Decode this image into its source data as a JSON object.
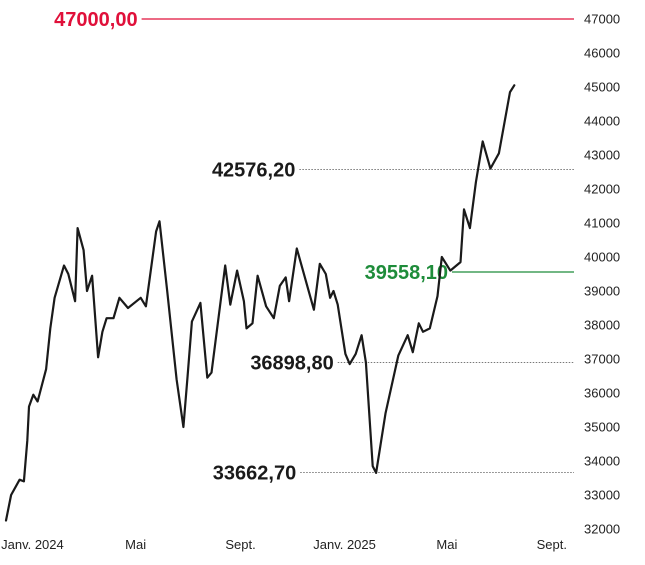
{
  "chart_data": {
    "type": "line",
    "title": "",
    "xlabel": "",
    "ylabel": "",
    "ylim": [
      32000,
      47000
    ],
    "xlim": [
      "2023-12-01",
      "2025-09-20"
    ],
    "grid": false,
    "y_ticks": [
      32000,
      33000,
      34000,
      35000,
      36000,
      37000,
      38000,
      39000,
      40000,
      41000,
      42000,
      43000,
      44000,
      45000,
      46000,
      47000
    ],
    "x_ticks": [
      {
        "date": "2024-01-01",
        "label": "Janv. 2024"
      },
      {
        "date": "2024-05-01",
        "label": "Mai"
      },
      {
        "date": "2024-09-01",
        "label": "Sept."
      },
      {
        "date": "2025-01-01",
        "label": "Janv. 2025"
      },
      {
        "date": "2025-05-01",
        "label": "Mai"
      },
      {
        "date": "2025-09-01",
        "label": "Sept."
      }
    ],
    "series": [
      {
        "color": "#1a1a1a",
        "points": [
          [
            "2023-12-01",
            32250
          ],
          [
            "2023-12-07",
            33000
          ],
          [
            "2023-12-17",
            33450
          ],
          [
            "2023-12-22",
            33400
          ],
          [
            "2023-12-26",
            34600
          ],
          [
            "2023-12-28",
            35600
          ],
          [
            "2024-01-02",
            35950
          ],
          [
            "2024-01-07",
            35750
          ],
          [
            "2024-01-17",
            36700
          ],
          [
            "2024-01-22",
            37900
          ],
          [
            "2024-01-27",
            38800
          ],
          [
            "2024-02-07",
            39750
          ],
          [
            "2024-02-12",
            39500
          ],
          [
            "2024-02-20",
            38700
          ],
          [
            "2024-02-23",
            40850
          ],
          [
            "2024-03-01",
            40200
          ],
          [
            "2024-03-05",
            39000
          ],
          [
            "2024-03-11",
            39450
          ],
          [
            "2024-03-18",
            37050
          ],
          [
            "2024-03-23",
            37800
          ],
          [
            "2024-03-28",
            38200
          ],
          [
            "2024-04-05",
            38200
          ],
          [
            "2024-04-12",
            38800
          ],
          [
            "2024-04-22",
            38500
          ],
          [
            "2024-05-07",
            38800
          ],
          [
            "2024-05-13",
            38550
          ],
          [
            "2024-05-25",
            40750
          ],
          [
            "2024-05-29",
            41050
          ],
          [
            "2024-06-07",
            39000
          ],
          [
            "2024-06-18",
            36400
          ],
          [
            "2024-06-26",
            35000
          ],
          [
            "2024-07-01",
            36500
          ],
          [
            "2024-07-06",
            38100
          ],
          [
            "2024-07-16",
            38650
          ],
          [
            "2024-07-24",
            36450
          ],
          [
            "2024-07-29",
            36600
          ],
          [
            "2024-08-14",
            39750
          ],
          [
            "2024-08-20",
            38600
          ],
          [
            "2024-08-28",
            39600
          ],
          [
            "2024-09-05",
            38700
          ],
          [
            "2024-09-08",
            37900
          ],
          [
            "2024-09-15",
            38050
          ],
          [
            "2024-09-21",
            39450
          ],
          [
            "2024-10-01",
            38550
          ],
          [
            "2024-10-10",
            38200
          ],
          [
            "2024-10-17",
            39150
          ],
          [
            "2024-10-24",
            39400
          ],
          [
            "2024-10-28",
            38700
          ],
          [
            "2024-11-06",
            40250
          ],
          [
            "2024-11-26",
            38450
          ],
          [
            "2024-12-03",
            39800
          ],
          [
            "2024-12-10",
            39500
          ],
          [
            "2024-12-15",
            38800
          ],
          [
            "2024-12-19",
            39000
          ],
          [
            "2024-12-24",
            38600
          ],
          [
            "2025-01-02",
            37150
          ],
          [
            "2025-01-07",
            36850
          ],
          [
            "2025-01-14",
            37150
          ],
          [
            "2025-01-21",
            37700
          ],
          [
            "2025-01-26",
            36900
          ],
          [
            "2025-02-03",
            33850
          ],
          [
            "2025-02-07",
            33650
          ],
          [
            "2025-02-18",
            35400
          ],
          [
            "2025-03-05",
            37100
          ],
          [
            "2025-03-16",
            37700
          ],
          [
            "2025-03-22",
            37200
          ],
          [
            "2025-03-29",
            38050
          ],
          [
            "2025-04-03",
            37800
          ],
          [
            "2025-04-11",
            37900
          ],
          [
            "2025-04-20",
            38850
          ],
          [
            "2025-04-25",
            40000
          ],
          [
            "2025-05-05",
            39600
          ],
          [
            "2025-05-17",
            39850
          ],
          [
            "2025-05-21",
            41400
          ],
          [
            "2025-05-28",
            40850
          ],
          [
            "2025-06-04",
            42200
          ],
          [
            "2025-06-12",
            43400
          ],
          [
            "2025-06-21",
            42600
          ],
          [
            "2025-07-01",
            43050
          ],
          [
            "2025-07-14",
            44850
          ],
          [
            "2025-07-19",
            45050
          ]
        ]
      }
    ],
    "reference_lines": [
      {
        "value": "47000,00",
        "y": 47000,
        "color": "#e0103a",
        "style": "solid",
        "x_from": "2024-05-08"
      },
      {
        "value": "42576,20",
        "y": 42576.2,
        "color": "#666666",
        "style": "dotted",
        "x_from": "2024-11-09"
      },
      {
        "value": "39558,10",
        "y": 39558.1,
        "color": "#1e8c3a",
        "style": "solid",
        "x_from": "2025-05-07"
      },
      {
        "value": "36898,80",
        "y": 36898.8,
        "color": "#666666",
        "style": "dotted",
        "x_from": "2024-12-24"
      },
      {
        "value": "33662,70",
        "y": 33662.7,
        "color": "#666666",
        "style": "dotted",
        "x_from": "2024-11-10"
      }
    ]
  }
}
